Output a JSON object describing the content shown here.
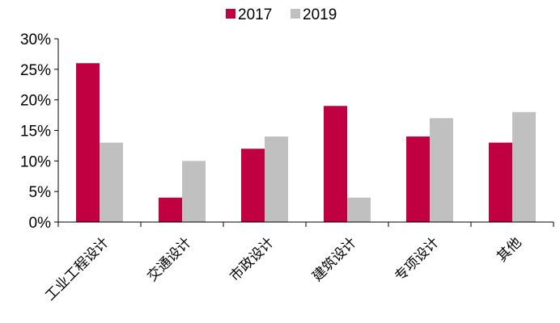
{
  "chart_data": {
    "type": "bar",
    "title": "",
    "xlabel": "",
    "ylabel": "",
    "categories": [
      "工业工程设计",
      "交通设计",
      "市政设计",
      "建筑设计",
      "专项设计",
      "其他"
    ],
    "series": [
      {
        "name": "2017",
        "color": "#C00040",
        "values": [
          26,
          4,
          12,
          19,
          14,
          13
        ]
      },
      {
        "name": "2019",
        "color": "#C0C0C0",
        "values": [
          13,
          10,
          14,
          4,
          17,
          18
        ]
      }
    ],
    "ylim": [
      0,
      30
    ],
    "yticks": [
      0,
      5,
      10,
      15,
      20,
      25,
      30
    ],
    "ytick_labels": [
      "0%",
      "5%",
      "10%",
      "15%",
      "20%",
      "25%",
      "30%"
    ],
    "grid": false,
    "legend_position": "top-center"
  }
}
